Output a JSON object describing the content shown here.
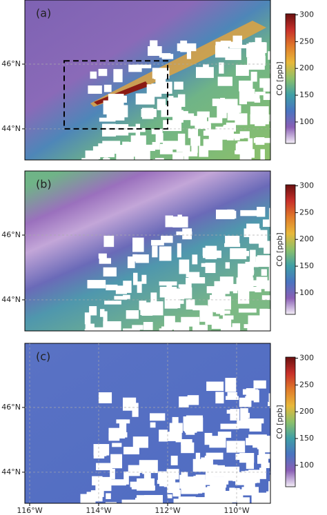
{
  "chart_data": [
    {
      "type": "heatmap",
      "panel_label": "(a)",
      "xlim": [
        -116.14,
        -109.02
      ],
      "ylim": [
        43.04,
        47.98
      ],
      "yticks": [
        {
          "value": 44,
          "label": "44°N"
        },
        {
          "value": 46,
          "label": "46°N"
        }
      ],
      "grid": true,
      "box": {
        "lon": [
          -115,
          -112
        ],
        "lat": [
          44,
          46.1
        ]
      },
      "colorbar_label": "CO [ppb]",
      "clim": [
        60,
        302
      ],
      "cticks": [
        100,
        150,
        200,
        250,
        300
      ],
      "colormap": [
        "#f3eef7",
        "#8a5fb5",
        "#4a74c0",
        "#3f9fa6",
        "#8cc06a",
        "#e8b83a",
        "#e07b2a",
        "#c8302a",
        "#6a1010"
      ]
    },
    {
      "type": "heatmap",
      "panel_label": "(b)",
      "xlim": [
        -116.14,
        -109.02
      ],
      "ylim": [
        43.04,
        47.98
      ],
      "yticks": [
        {
          "value": 44,
          "label": "44°N"
        },
        {
          "value": 46,
          "label": "46°N"
        }
      ],
      "grid": true,
      "colorbar_label": "CO [ppb]",
      "clim": [
        60,
        302
      ],
      "cticks": [
        100,
        150,
        200,
        250,
        300
      ],
      "colormap": [
        "#f3eef7",
        "#8a5fb5",
        "#4a74c0",
        "#3f9fa6",
        "#8cc06a",
        "#e8b83a",
        "#e07b2a",
        "#c8302a",
        "#6a1010"
      ]
    },
    {
      "type": "heatmap",
      "panel_label": "(c)",
      "xlim": [
        -116.14,
        -109.02
      ],
      "ylim": [
        43.04,
        47.98
      ],
      "xticks": [
        {
          "value": -116,
          "label": "116°W"
        },
        {
          "value": -114,
          "label": "114°W"
        },
        {
          "value": -112,
          "label": "112°W"
        },
        {
          "value": -110,
          "label": "110°W"
        }
      ],
      "yticks": [
        {
          "value": 44,
          "label": "44°N"
        },
        {
          "value": 46,
          "label": "46°N"
        }
      ],
      "grid": true,
      "colorbar_label": "CO [ppb]",
      "clim": [
        60,
        302
      ],
      "cticks": [
        100,
        150,
        200,
        250,
        300
      ],
      "colormap": [
        "#f3eef7",
        "#8a5fb5",
        "#4a74c0",
        "#3f9fa6",
        "#8cc06a",
        "#e8b83a",
        "#e07b2a",
        "#c8302a",
        "#6a1010"
      ]
    }
  ]
}
